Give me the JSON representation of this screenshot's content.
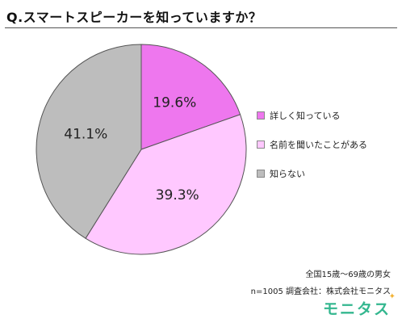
{
  "title": "Q.スマートスピーカーを知っていますか？",
  "chart_data": {
    "type": "pie",
    "slices": [
      {
        "label": "詳しく知っている",
        "value": 19.6,
        "display": "19.6%",
        "color": "#ee77ee"
      },
      {
        "label": "名前を聞いたことがある",
        "value": 39.3,
        "display": "39.3%",
        "color": "#ffc8ff"
      },
      {
        "label": "知らない",
        "value": 41.1,
        "display": "41.1%",
        "color": "#bdbdbd"
      }
    ],
    "legend_position": "right"
  },
  "footer": {
    "subject": "全国15歳～69歳の男女",
    "survey_info": "n=1005  調査会社：株式会社モニタス"
  },
  "brand": {
    "name": "モニタス",
    "star": "✦"
  }
}
